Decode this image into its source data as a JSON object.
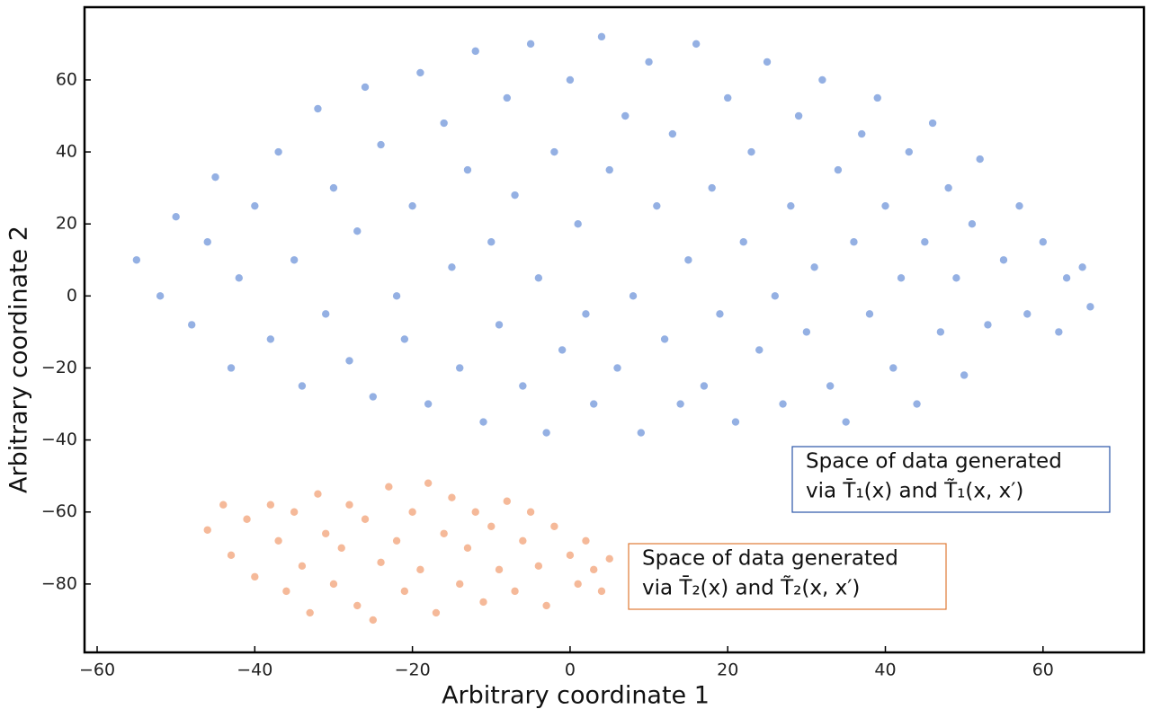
{
  "chart_data": {
    "type": "scatter",
    "xlabel": "Arbitrary coordinate 1",
    "ylabel": "Arbitrary coordinate 2",
    "xlim": [
      -61.6,
      72.8
    ],
    "ylim": [
      -99,
      80.2
    ],
    "xticks": [
      {
        "value": -60,
        "label": "−60"
      },
      {
        "value": -40,
        "label": "−40"
      },
      {
        "value": -20,
        "label": "−20"
      },
      0,
      20,
      40,
      60
    ],
    "yticks": [
      {
        "value": -80,
        "label": "−80"
      },
      {
        "value": -60,
        "label": "−60"
      },
      {
        "value": -40,
        "label": "−40"
      },
      {
        "value": -20,
        "label": "−20"
      },
      0,
      20,
      40,
      60
    ],
    "series": [
      {
        "color": "#4c7bd0",
        "x": [
          -55,
          -52,
          -50,
          -48,
          -46,
          -45,
          -43,
          -42,
          -40,
          -38,
          -37,
          -35,
          -34,
          -32,
          -31,
          -30,
          -28,
          -27,
          -26,
          -25,
          -24,
          -22,
          -21,
          -20,
          -19,
          -18,
          -16,
          -15,
          -14,
          -13,
          -12,
          -11,
          -10,
          -9,
          -8,
          -7,
          -6,
          -5,
          -4,
          -3,
          -2,
          -1,
          0,
          1,
          2,
          3,
          4,
          5,
          6,
          7,
          8,
          9,
          10,
          11,
          12,
          13,
          14,
          15,
          16,
          17,
          18,
          19,
          20,
          21,
          22,
          23,
          24,
          25,
          26,
          27,
          28,
          29,
          30,
          31,
          32,
          33,
          34,
          35,
          36,
          37,
          38,
          39,
          40,
          41,
          42,
          43,
          44,
          45,
          46,
          47,
          48,
          49,
          50,
          51,
          52,
          53,
          55,
          57,
          58,
          60,
          62,
          63,
          65,
          66
        ],
        "values": [
          10,
          0,
          22,
          -8,
          15,
          33,
          -20,
          5,
          25,
          -12,
          40,
          10,
          -25,
          52,
          -5,
          30,
          -18,
          18,
          58,
          -28,
          42,
          0,
          -12,
          25,
          62,
          -30,
          48,
          8,
          -20,
          35,
          68,
          -35,
          15,
          -8,
          55,
          28,
          -25,
          70,
          5,
          -38,
          40,
          -15,
          60,
          20,
          -5,
          -30,
          72,
          35,
          -20,
          50,
          0,
          -38,
          65,
          25,
          -12,
          45,
          -30,
          10,
          70,
          -25,
          30,
          -5,
          55,
          -35,
          15,
          40,
          -15,
          65,
          0,
          -30,
          25,
          50,
          -10,
          8,
          60,
          -25,
          35,
          -35,
          15,
          45,
          -5,
          55,
          25,
          -20,
          5,
          40,
          -30,
          15,
          48,
          -10,
          30,
          5,
          -22,
          20,
          38,
          -8,
          10,
          25,
          -5,
          15,
          -10,
          5,
          8,
          -3
        ]
      },
      {
        "color": "#ee8a55",
        "x": [
          -46,
          -44,
          -43,
          -41,
          -40,
          -38,
          -37,
          -36,
          -35,
          -34,
          -33,
          -32,
          -31,
          -30,
          -29,
          -28,
          -27,
          -26,
          -25,
          -24,
          -23,
          -22,
          -21,
          -20,
          -19,
          -18,
          -17,
          -16,
          -15,
          -14,
          -13,
          -12,
          -11,
          -10,
          -9,
          -8,
          -7,
          -6,
          -5,
          -4,
          -3,
          -2,
          0,
          1,
          2,
          3,
          4,
          5
        ],
        "values": [
          -65,
          -58,
          -72,
          -62,
          -78,
          -58,
          -68,
          -82,
          -60,
          -75,
          -88,
          -55,
          -66,
          -80,
          -70,
          -58,
          -86,
          -62,
          -90,
          -74,
          -53,
          -68,
          -82,
          -60,
          -76,
          -52,
          -88,
          -66,
          -56,
          -80,
          -70,
          -60,
          -85,
          -64,
          -76,
          -57,
          -82,
          -68,
          -60,
          -75,
          -86,
          -64,
          -72,
          -80,
          -68,
          -76,
          -82,
          -73
        ]
      }
    ],
    "annotations": [
      {
        "lines": [
          "Space of data generated",
          "via T̄₁(x) and T̃₁(x, x′)"
        ],
        "color": "#2a55a8"
      },
      {
        "lines": [
          "Space of data generated",
          "via T̄₂(x) and T̃₂(x, x′)"
        ],
        "color": "#e07a35"
      }
    ]
  }
}
